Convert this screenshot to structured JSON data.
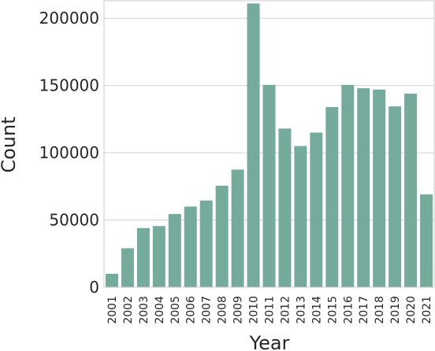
{
  "chart_data": {
    "type": "bar",
    "xlabel": "Year",
    "ylabel": "Count",
    "categories": [
      "2001",
      "2002",
      "2003",
      "2004",
      "2005",
      "2006",
      "2007",
      "2008",
      "2009",
      "2010",
      "2011",
      "2012",
      "2013",
      "2014",
      "2015",
      "2016",
      "2017",
      "2018",
      "2019",
      "2020",
      "2021"
    ],
    "values": [
      10000,
      29000,
      44000,
      45500,
      54500,
      60000,
      64500,
      75500,
      87500,
      211000,
      150500,
      118000,
      105000,
      115000,
      134000,
      150500,
      148000,
      147000,
      134500,
      144000,
      69000
    ],
    "ylim": [
      0,
      213000
    ],
    "yticks": [
      0,
      50000,
      100000,
      150000,
      200000
    ],
    "ytick_labels": [
      "0",
      "50000",
      "100000",
      "150000",
      "200000"
    ],
    "grid": "horizontal",
    "bar_color": "#74ab9b"
  }
}
